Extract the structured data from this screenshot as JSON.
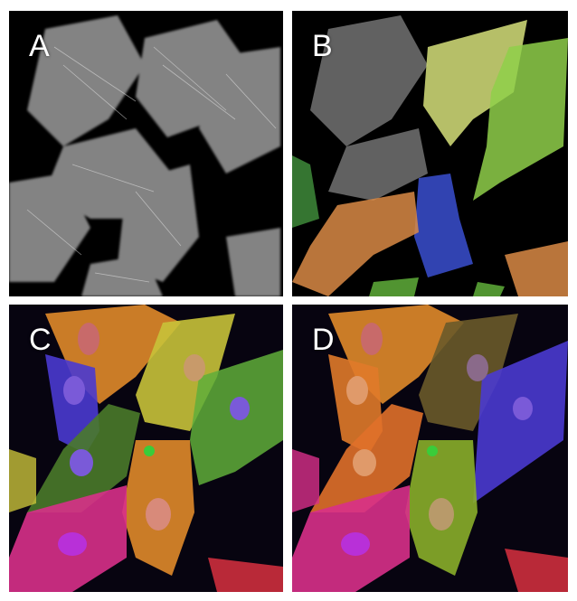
{
  "panels": {
    "a": {
      "label": "A"
    },
    "b": {
      "label": "B"
    },
    "c": {
      "label": "C"
    },
    "d": {
      "label": "D"
    }
  },
  "colors": {
    "background": "#000000",
    "cell_gray": "#b8b8b8",
    "seg_yellow": "#d6e07a",
    "seg_green": "#8fcf4a",
    "seg_blue": "#3a4fd0",
    "seg_orange": "#d98a45",
    "seg_dark_green": "#3e8a3a",
    "fl_orange": "#e08a2a",
    "fl_yellow": "#c8c23a",
    "fl_green": "#5fae3a",
    "fl_red": "#d83040",
    "fl_magenta": "#d8308a",
    "fl_blue": "#4a3ad0",
    "nucleus": "#8a5ad8"
  }
}
